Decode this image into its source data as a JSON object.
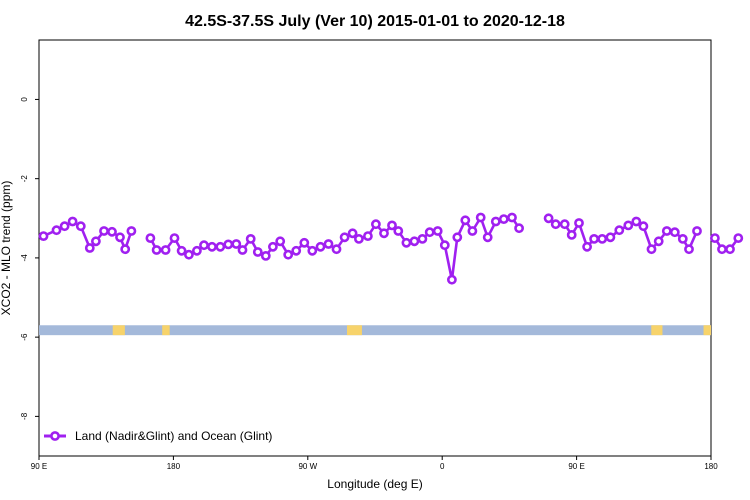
{
  "chart_data": {
    "type": "line",
    "title": "42.5S-37.5S July (Ver 10)   2015-01-01 to 2020-12-18",
    "xlabel": "Longitude (deg E)",
    "ylabel": "XCO2 - MLO trend (ppm)",
    "xlim": [
      90,
      450
    ],
    "ylim": [
      -9,
      1.5
    ],
    "x_ticks": [
      {
        "value": 90,
        "label": "90 E"
      },
      {
        "value": 162,
        "label": "180"
      },
      {
        "value": 234,
        "label": "90 W"
      },
      {
        "value": 306,
        "label": "0"
      },
      {
        "value": 378,
        "label": "90 E"
      },
      {
        "value": 450,
        "label": "180"
      }
    ],
    "y_ticks": [
      {
        "value": 0,
        "label": "0"
      },
      {
        "value": -2,
        "label": "-2"
      },
      {
        "value": -4,
        "label": "-4"
      },
      {
        "value": -6,
        "label": "-6"
      },
      {
        "value": -8,
        "label": "-8"
      }
    ],
    "grid": false,
    "legend_position": "bottom-left",
    "series": [
      {
        "name": "Land (Nadir&Glint) and Ocean (Glint)",
        "color": "#a020f0",
        "segments": [
          [
            [
              92.4,
              -3.45
            ],
            [
              99.4,
              -3.3
            ],
            [
              103.7,
              -3.2
            ],
            [
              108.0,
              -3.08
            ],
            [
              112.4,
              -3.2
            ],
            [
              117.2,
              -3.75
            ],
            [
              120.5,
              -3.58
            ],
            [
              124.8,
              -3.32
            ],
            [
              129.1,
              -3.34
            ],
            [
              133.4,
              -3.48
            ],
            [
              136.2,
              -3.78
            ],
            [
              139.5,
              -3.32
            ]
          ],
          [
            [
              149.7,
              -3.5
            ],
            [
              153.0,
              -3.8
            ],
            [
              157.8,
              -3.8
            ],
            [
              162.6,
              -3.5
            ],
            [
              166.4,
              -3.82
            ],
            [
              170.3,
              -3.92
            ],
            [
              174.6,
              -3.82
            ],
            [
              178.4,
              -3.68
            ],
            [
              182.7,
              -3.72
            ],
            [
              187.1,
              -3.72
            ],
            [
              191.4,
              -3.66
            ],
            [
              195.7,
              -3.65
            ],
            [
              199.0,
              -3.8
            ],
            [
              203.4,
              -3.52
            ],
            [
              207.2,
              -3.85
            ],
            [
              211.5,
              -3.95
            ],
            [
              215.3,
              -3.72
            ],
            [
              219.2,
              -3.58
            ],
            [
              223.5,
              -3.92
            ],
            [
              227.8,
              -3.82
            ],
            [
              232.1,
              -3.62
            ],
            [
              236.4,
              -3.82
            ],
            [
              240.8,
              -3.72
            ],
            [
              245.1,
              -3.65
            ],
            [
              249.4,
              -3.78
            ],
            [
              253.7,
              -3.48
            ],
            [
              258.0,
              -3.38
            ],
            [
              261.4,
              -3.52
            ],
            [
              266.2,
              -3.45
            ],
            [
              270.5,
              -3.15
            ],
            [
              274.8,
              -3.38
            ],
            [
              279.1,
              -3.18
            ],
            [
              282.5,
              -3.32
            ],
            [
              286.8,
              -3.62
            ],
            [
              291.1,
              -3.58
            ],
            [
              295.4,
              -3.52
            ],
            [
              299.3,
              -3.35
            ],
            [
              303.6,
              -3.32
            ],
            [
              307.4,
              -3.68
            ],
            [
              311.2,
              -4.55
            ],
            [
              314.1,
              -3.48
            ],
            [
              318.4,
              -3.05
            ],
            [
              322.2,
              -3.32
            ],
            [
              326.6,
              -2.98
            ],
            [
              330.4,
              -3.48
            ],
            [
              334.7,
              -3.08
            ],
            [
              339.0,
              -3.02
            ],
            [
              343.4,
              -2.98
            ],
            [
              347.2,
              -3.25
            ]
          ],
          [
            [
              363.0,
              -3.0
            ],
            [
              366.8,
              -3.15
            ],
            [
              371.6,
              -3.15
            ],
            [
              375.4,
              -3.42
            ],
            [
              379.3,
              -3.12
            ],
            [
              383.6,
              -3.72
            ],
            [
              387.4,
              -3.52
            ],
            [
              391.7,
              -3.52
            ],
            [
              396.1,
              -3.48
            ],
            [
              400.9,
              -3.3
            ],
            [
              405.7,
              -3.18
            ],
            [
              410.0,
              -3.08
            ],
            [
              413.8,
              -3.2
            ],
            [
              418.1,
              -3.78
            ],
            [
              422.0,
              -3.58
            ],
            [
              426.3,
              -3.32
            ],
            [
              430.6,
              -3.35
            ],
            [
              434.9,
              -3.52
            ],
            [
              438.2,
              -3.78
            ],
            [
              442.5,
              -3.32
            ]
          ],
          [
            [
              452.1,
              -3.5
            ],
            [
              455.9,
              -3.78
            ],
            [
              460.2,
              -3.78
            ],
            [
              464.6,
              -3.5
            ]
          ]
        ]
      }
    ],
    "land_mask_band": {
      "y_range": [
        -5.95,
        -5.7
      ],
      "ocean_color": "#a4b9da",
      "land_color": "#f7d36b",
      "land_x_ranges": [
        [
          129.5,
          136.0
        ],
        [
          156.0,
          160.0
        ],
        [
          255.0,
          263.0
        ],
        [
          418.0,
          424.0
        ],
        [
          446.0,
          450.0
        ]
      ]
    }
  }
}
